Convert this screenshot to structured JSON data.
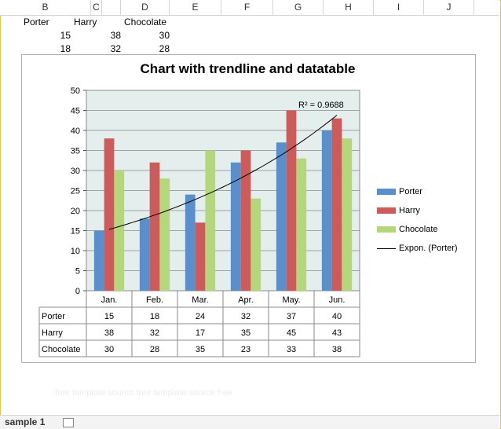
{
  "spreadsheet": {
    "columns": [
      "B",
      "C",
      "D",
      "E",
      "F",
      "G",
      "H",
      "I",
      "J"
    ],
    "header_row": [
      "Porter",
      "Harry",
      "Chocolate"
    ],
    "rows": [
      [
        "15",
        "38",
        "30"
      ],
      [
        "18",
        "32",
        "28"
      ]
    ],
    "sheet_tab": "sample 1",
    "watermark": "free template source free template source free"
  },
  "chart_data": {
    "type": "bar",
    "title": "Chart with trendline and datatable",
    "categories": [
      "Jan.",
      "Feb.",
      "Mar.",
      "Apr.",
      "May.",
      "Jun."
    ],
    "series": [
      {
        "name": "Porter",
        "values": [
          15,
          18,
          24,
          32,
          37,
          40
        ],
        "color": "#5b8fcb"
      },
      {
        "name": "Harry",
        "values": [
          38,
          32,
          17,
          35,
          45,
          43
        ],
        "color": "#cc5b5b"
      },
      {
        "name": "Chocolate",
        "values": [
          30,
          28,
          35,
          23,
          33,
          38
        ],
        "color": "#b5d77b"
      }
    ],
    "ylim": [
      0,
      50
    ],
    "yticks": [
      "0",
      "5",
      "10",
      "15",
      "20",
      "25",
      "30",
      "35",
      "40",
      "45",
      "50"
    ],
    "trendline": {
      "label": "Expon. (Porter)",
      "r2_text": "R² = 0.9688",
      "start": 15.3,
      "end": 43.8
    },
    "legend_position": "right",
    "plot_background": "#e4eeec",
    "grid": true
  }
}
